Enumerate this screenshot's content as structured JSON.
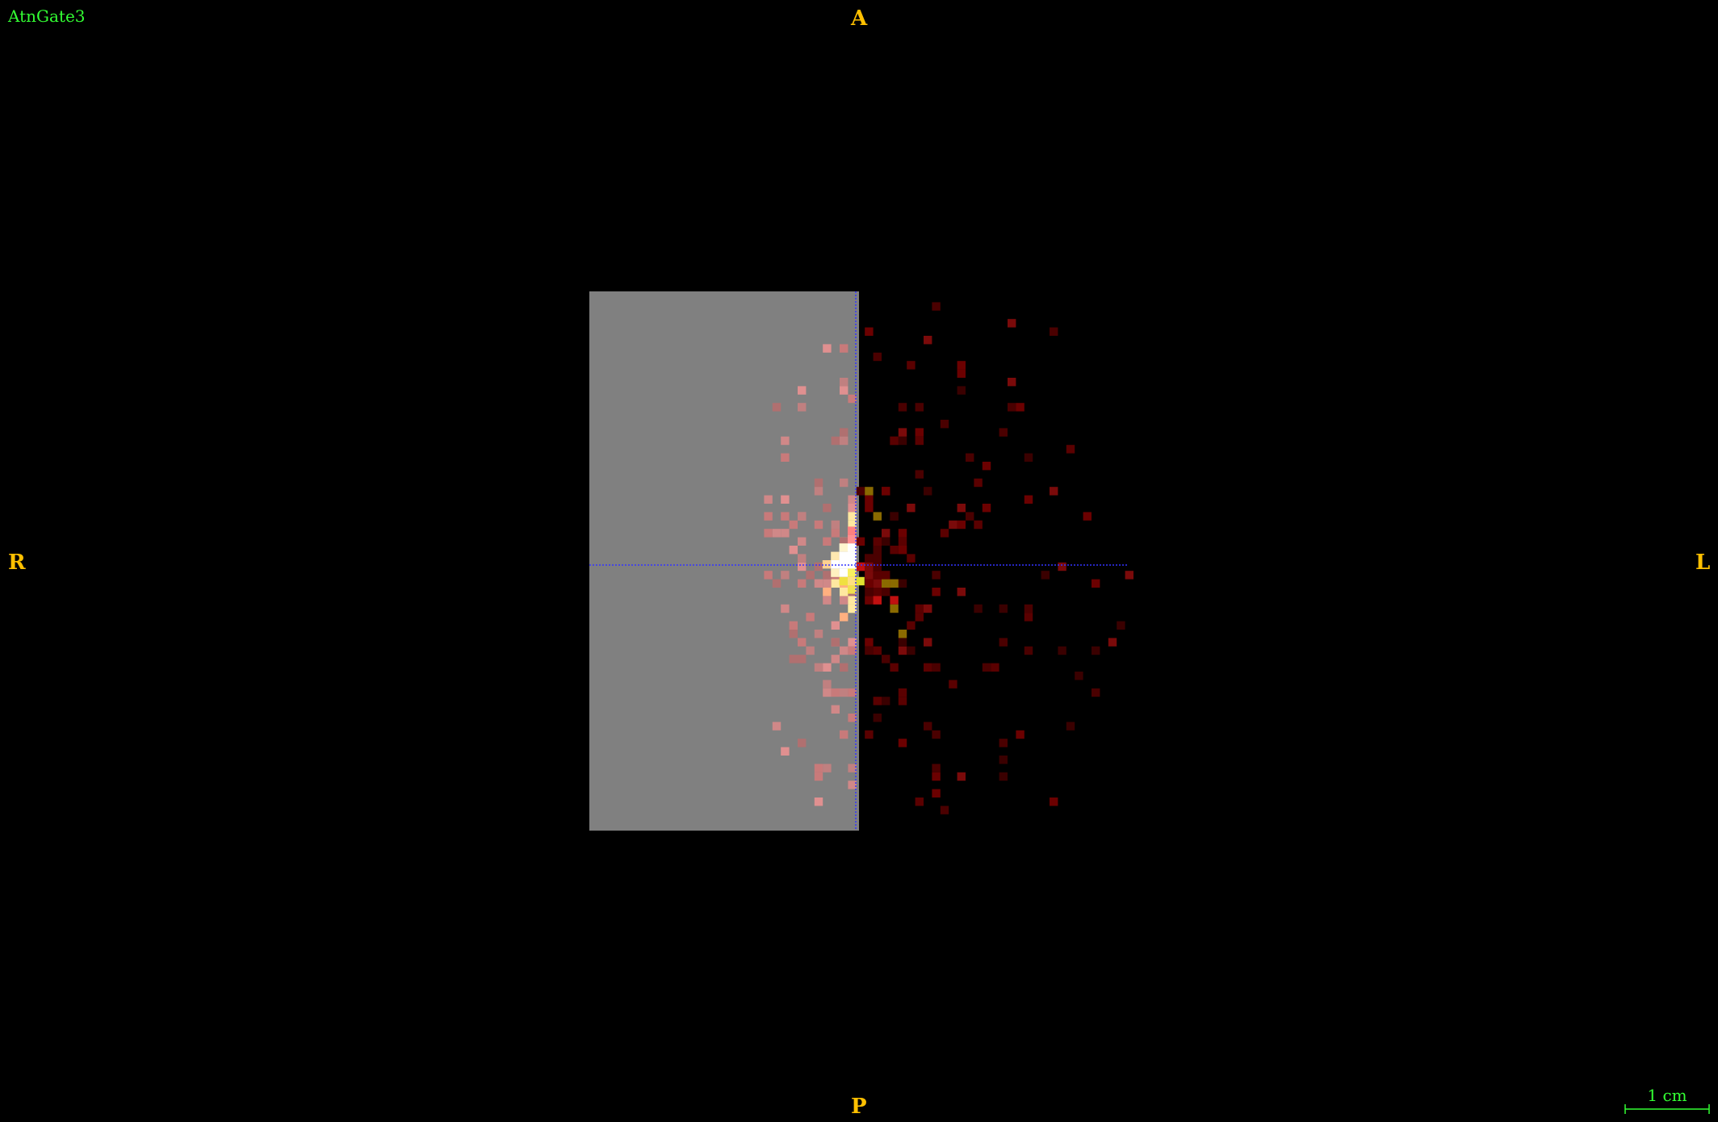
{
  "viewer": {
    "layer_name": "AtnGate3",
    "orientation": {
      "anterior": "A",
      "posterior": "P",
      "right": "R",
      "left": "L"
    },
    "scale_bar_label": "1 cm"
  },
  "colors": {
    "background": "#000000",
    "volume_gray": "#808080",
    "crosshair": "#3333ff",
    "orientation_text": "#ffc000",
    "overlay_text": "#33ff33"
  },
  "icons": {
    "crosshair": "crosshair-icon",
    "scale_bar": "scale-bar-icon"
  }
}
